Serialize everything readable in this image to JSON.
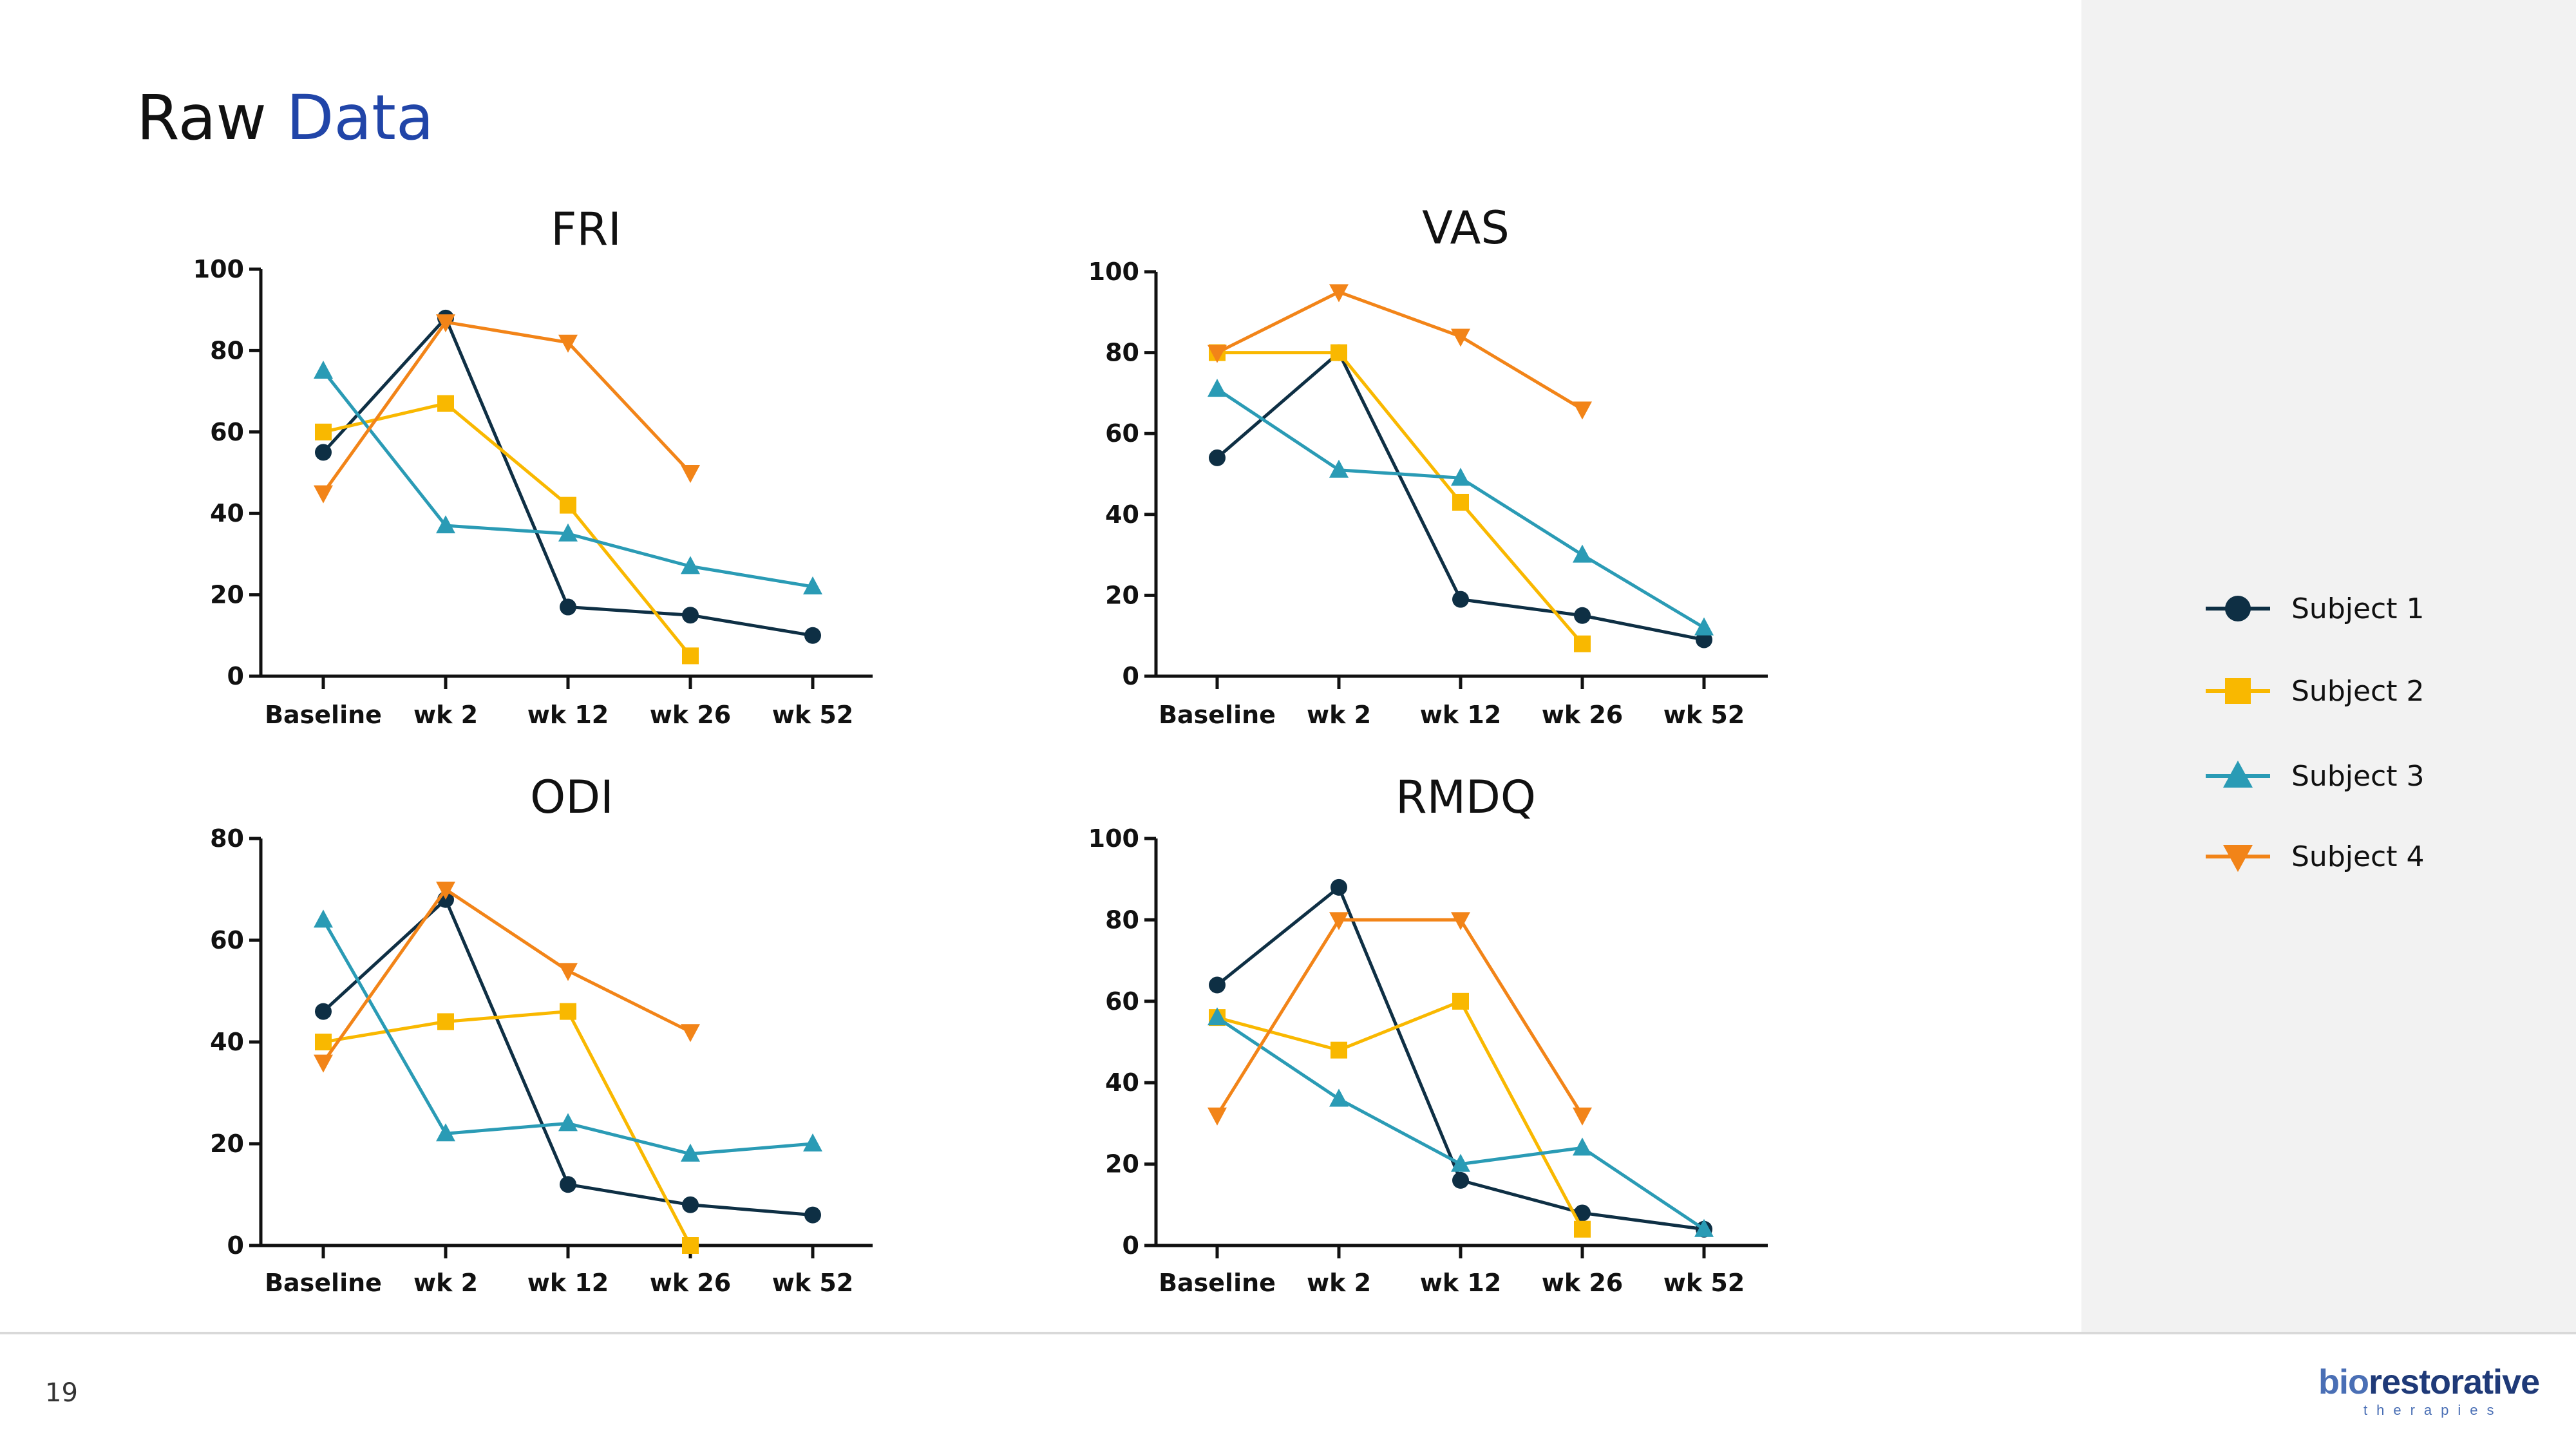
{
  "slide": {
    "title_prefix": "Raw ",
    "title_accent": "Data",
    "page_number": "19"
  },
  "logo": {
    "part1": "bio",
    "part2": "restorative",
    "sub": "therapies"
  },
  "colors": {
    "title_accent": "#2145a8",
    "subject1": "#0e2f44",
    "subject2": "#f9b800",
    "subject3": "#2a9bb5",
    "subject4": "#f28418",
    "side_panel": "#f2f2f2"
  },
  "legend": [
    {
      "name": "Subject 1",
      "color": "#0e2f44",
      "marker": "circle"
    },
    {
      "name": "Subject 2",
      "color": "#f9b800",
      "marker": "square"
    },
    {
      "name": "Subject 3",
      "color": "#2a9bb5",
      "marker": "triangle-up"
    },
    {
      "name": "Subject 4",
      "color": "#f28418",
      "marker": "triangle-down"
    }
  ],
  "chart_data": [
    {
      "type": "line",
      "title": "FRI",
      "categories": [
        "Baseline",
        "wk 2",
        "wk 12",
        "wk 26",
        "wk 52"
      ],
      "ylim": [
        0,
        100
      ],
      "yticks": [
        0,
        20,
        40,
        60,
        80,
        100
      ],
      "xlabel": "",
      "ylabel": "",
      "grid": false,
      "legend": "right",
      "series": [
        {
          "name": "Subject 1",
          "values": [
            55,
            88,
            17,
            15,
            10
          ]
        },
        {
          "name": "Subject 2",
          "values": [
            60,
            67,
            42,
            5,
            null
          ]
        },
        {
          "name": "Subject 3",
          "values": [
            75,
            37,
            35,
            27,
            22
          ]
        },
        {
          "name": "Subject 4",
          "values": [
            45,
            87,
            82,
            50,
            null
          ]
        }
      ]
    },
    {
      "type": "line",
      "title": "VAS",
      "categories": [
        "Baseline",
        "wk 2",
        "wk 12",
        "wk 26",
        "wk 52"
      ],
      "ylim": [
        0,
        100
      ],
      "yticks": [
        0,
        20,
        40,
        60,
        80,
        100
      ],
      "xlabel": "",
      "ylabel": "",
      "grid": false,
      "legend": "right",
      "series": [
        {
          "name": "Subject 1",
          "values": [
            54,
            80,
            19,
            15,
            9
          ]
        },
        {
          "name": "Subject 2",
          "values": [
            80,
            80,
            43,
            8,
            null
          ]
        },
        {
          "name": "Subject 3",
          "values": [
            71,
            51,
            49,
            30,
            12
          ]
        },
        {
          "name": "Subject 4",
          "values": [
            80,
            95,
            84,
            66,
            null
          ]
        }
      ]
    },
    {
      "type": "line",
      "title": "ODI",
      "categories": [
        "Baseline",
        "wk 2",
        "wk 12",
        "wk 26",
        "wk 52"
      ],
      "ylim": [
        0,
        80
      ],
      "yticks": [
        0,
        20,
        40,
        60,
        80
      ],
      "xlabel": "",
      "ylabel": "",
      "grid": false,
      "legend": "right",
      "series": [
        {
          "name": "Subject 1",
          "values": [
            46,
            68,
            12,
            8,
            6
          ]
        },
        {
          "name": "Subject 2",
          "values": [
            40,
            44,
            46,
            0,
            null
          ]
        },
        {
          "name": "Subject 3",
          "values": [
            64,
            22,
            24,
            18,
            20
          ]
        },
        {
          "name": "Subject 4",
          "values": [
            36,
            70,
            54,
            42,
            null
          ]
        }
      ]
    },
    {
      "type": "line",
      "title": "RMDQ",
      "categories": [
        "Baseline",
        "wk 2",
        "wk 12",
        "wk 26",
        "wk 52"
      ],
      "ylim": [
        0,
        100
      ],
      "yticks": [
        0,
        20,
        40,
        60,
        80,
        100
      ],
      "xlabel": "",
      "ylabel": "",
      "grid": false,
      "legend": "right",
      "series": [
        {
          "name": "Subject 1",
          "values": [
            64,
            88,
            16,
            8,
            4
          ]
        },
        {
          "name": "Subject 2",
          "values": [
            56,
            48,
            60,
            4,
            null
          ]
        },
        {
          "name": "Subject 3",
          "values": [
            56,
            36,
            20,
            24,
            4
          ]
        },
        {
          "name": "Subject 4",
          "values": [
            32,
            80,
            80,
            32,
            null
          ]
        }
      ]
    }
  ]
}
